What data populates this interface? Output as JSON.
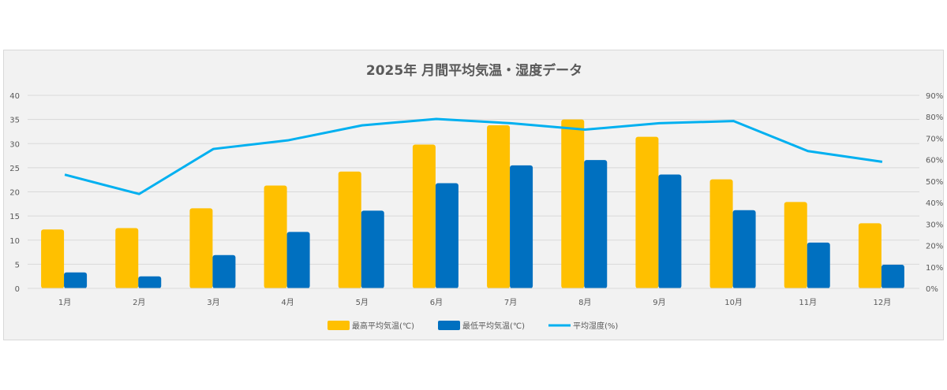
{
  "chart_data": {
    "type": "bar",
    "title": "2025年 月間平均気温・湿度データ",
    "categories": [
      "1月",
      "2月",
      "3月",
      "4月",
      "5月",
      "6月",
      "7月",
      "8月",
      "9月",
      "10月",
      "11月",
      "12月"
    ],
    "series": [
      {
        "name": "最高平均気温(℃)",
        "type": "bar",
        "axis": "left",
        "color": "#ffc000",
        "values": [
          12.2,
          12.5,
          16.6,
          21.3,
          24.2,
          29.8,
          33.8,
          35.0,
          31.4,
          22.6,
          17.9,
          13.5
        ]
      },
      {
        "name": "最低平均気温(℃)",
        "type": "bar",
        "axis": "left",
        "color": "#0070c0",
        "values": [
          3.3,
          2.5,
          6.9,
          11.7,
          16.1,
          21.8,
          25.5,
          26.6,
          23.6,
          16.2,
          9.5,
          4.9
        ]
      },
      {
        "name": "平均湿度(%)",
        "type": "line",
        "axis": "right",
        "color": "#00b0f0",
        "values": [
          53,
          44,
          65,
          69,
          76,
          79,
          77,
          74,
          77,
          78,
          64,
          59
        ]
      }
    ],
    "y_left": {
      "min": 0,
      "max": 40,
      "ticks": [
        "0",
        "5",
        "10",
        "15",
        "20",
        "25",
        "30",
        "35",
        "40"
      ]
    },
    "y_right": {
      "min": 0,
      "max": 90,
      "ticks": [
        "0%",
        "10%",
        "20%",
        "30%",
        "40%",
        "50%",
        "60%",
        "70%",
        "80%",
        "90%"
      ]
    },
    "grid": true,
    "legend_position": "bottom"
  }
}
